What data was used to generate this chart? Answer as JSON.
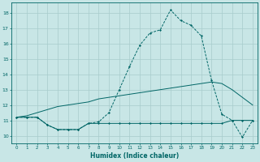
{
  "xlabel": "Humidex (Indice chaleur)",
  "background_color": "#c8e6e6",
  "grid_color": "#a8cccc",
  "line_color": "#006666",
  "xlim": [
    -0.5,
    23.5
  ],
  "ylim": [
    9.5,
    18.7
  ],
  "yticks": [
    10,
    11,
    12,
    13,
    14,
    15,
    16,
    17,
    18
  ],
  "xticks": [
    0,
    1,
    2,
    3,
    4,
    5,
    6,
    7,
    8,
    9,
    10,
    11,
    12,
    13,
    14,
    15,
    16,
    17,
    18,
    19,
    20,
    21,
    22,
    23
  ],
  "series_flat": {
    "x": [
      0,
      1,
      2,
      3,
      4,
      5,
      6,
      7,
      8,
      9,
      10,
      11,
      12,
      13,
      14,
      15,
      16,
      17,
      18,
      19,
      20,
      21,
      22,
      23
    ],
    "y": [
      11.2,
      11.2,
      11.2,
      10.7,
      10.4,
      10.4,
      10.4,
      10.8,
      10.8,
      10.8,
      10.8,
      10.8,
      10.8,
      10.8,
      10.8,
      10.8,
      10.8,
      10.8,
      10.8,
      10.8,
      10.8,
      11.0,
      11.0,
      11.0
    ]
  },
  "series_diag": {
    "x": [
      0,
      1,
      2,
      3,
      4,
      5,
      6,
      7,
      8,
      9,
      10,
      11,
      12,
      13,
      14,
      15,
      16,
      17,
      18,
      19,
      20,
      21,
      22,
      23
    ],
    "y": [
      11.2,
      11.3,
      11.5,
      11.7,
      11.9,
      12.0,
      12.1,
      12.2,
      12.4,
      12.5,
      12.6,
      12.7,
      12.8,
      12.9,
      13.0,
      13.1,
      13.2,
      13.3,
      13.4,
      13.5,
      13.4,
      13.0,
      12.5,
      12.0
    ]
  },
  "series_main": {
    "x": [
      0,
      1,
      2,
      3,
      4,
      5,
      6,
      7,
      8,
      9,
      10,
      11,
      12,
      13,
      14,
      15,
      16,
      17,
      18,
      19,
      20,
      21,
      22,
      23
    ],
    "y": [
      11.2,
      11.2,
      11.2,
      10.7,
      10.4,
      10.4,
      10.4,
      10.8,
      10.9,
      11.5,
      13.0,
      14.5,
      15.9,
      16.7,
      16.9,
      18.2,
      17.5,
      17.2,
      16.5,
      13.6,
      11.4,
      11.0,
      9.9,
      11.0
    ]
  }
}
